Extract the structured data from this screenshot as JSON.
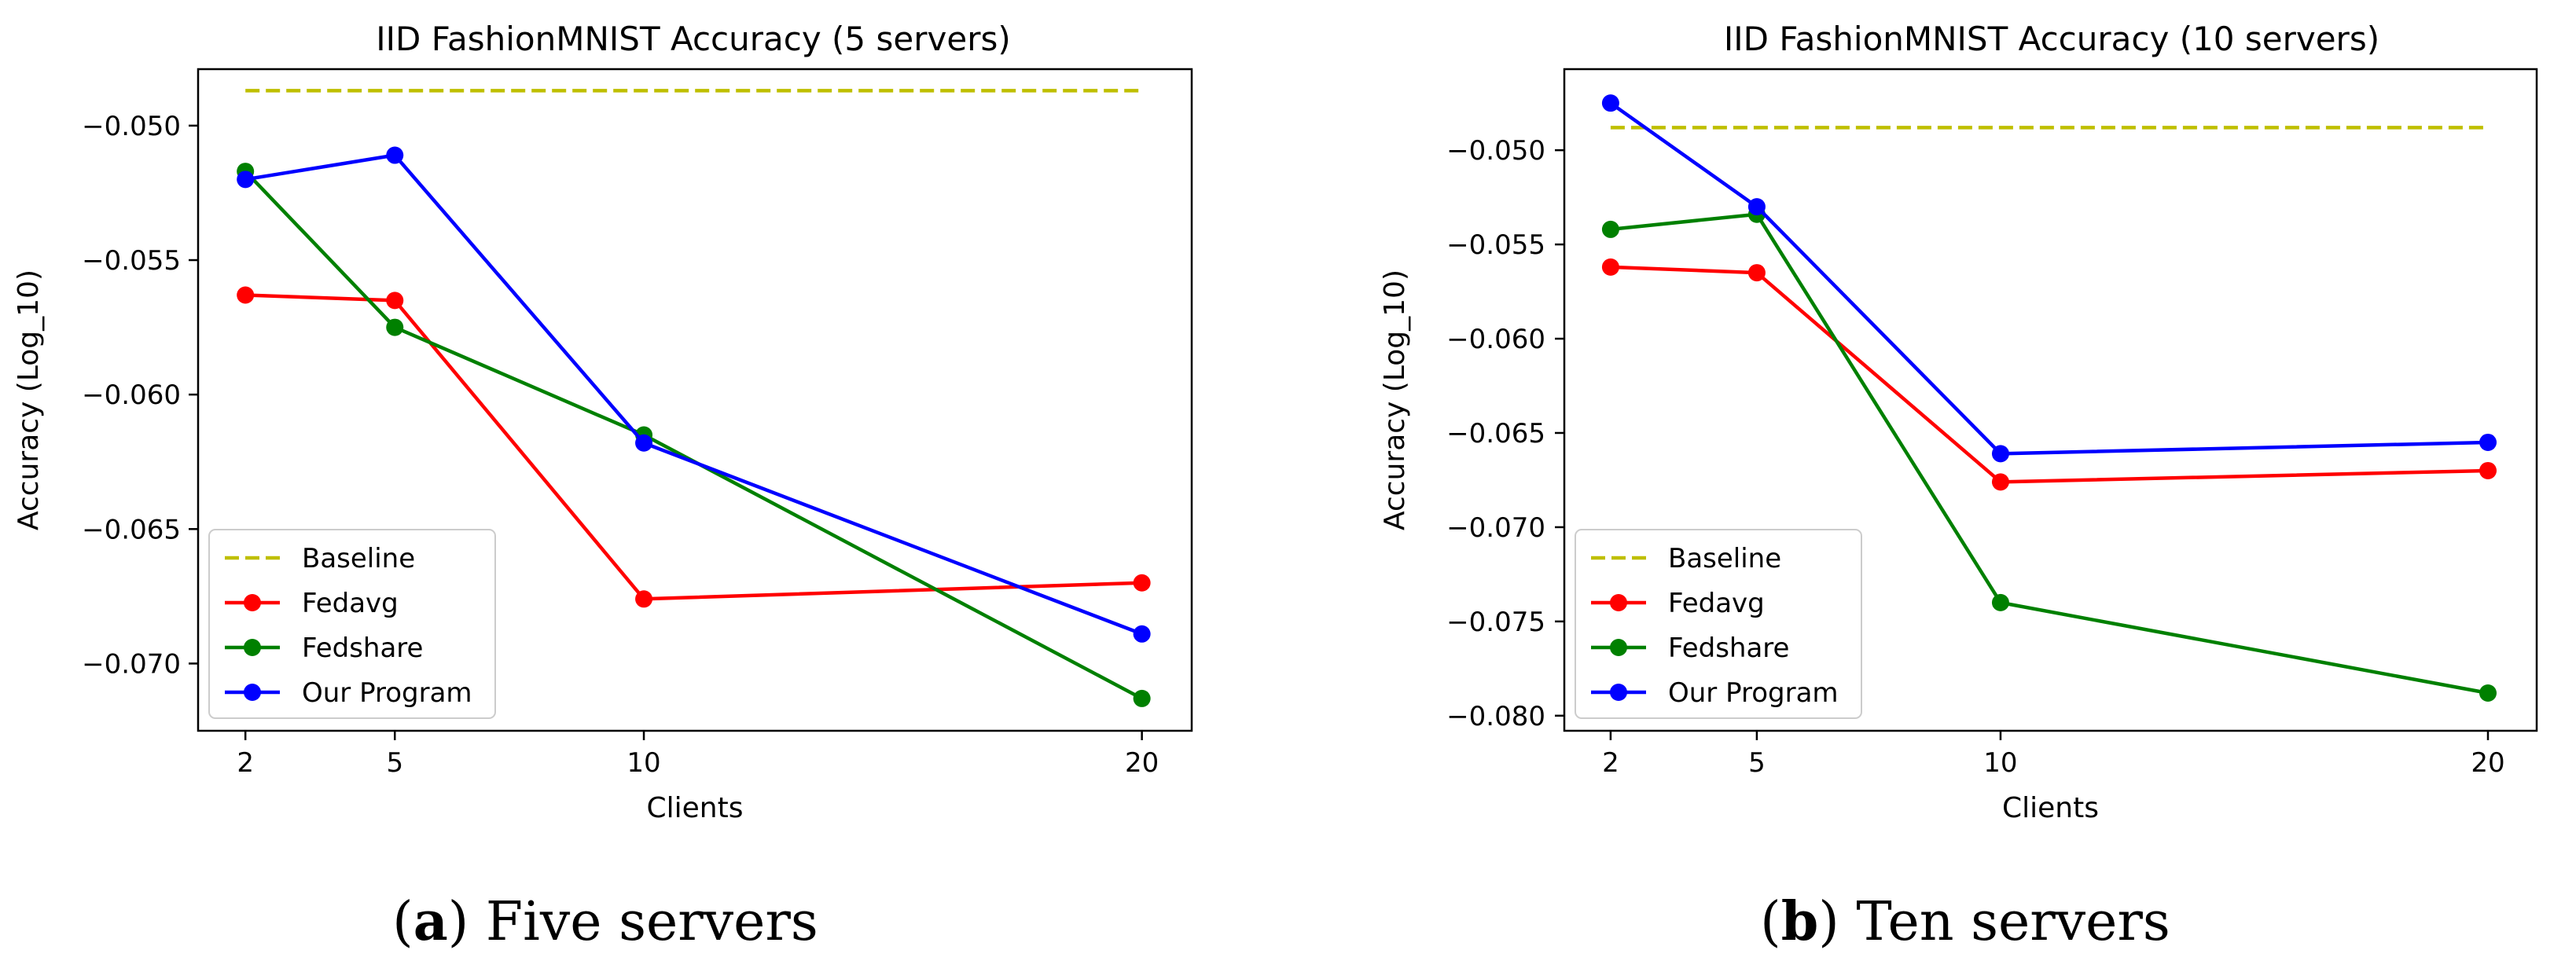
{
  "chart_data": [
    {
      "type": "line",
      "title": "IID FashionMNIST Accuracy (5 servers)",
      "xlabel": "Clients",
      "ylabel": "Accuracy (Log_10)",
      "x": [
        2,
        5,
        10,
        20
      ],
      "xticks": [
        "2",
        "5",
        "10",
        "20"
      ],
      "xlim": [
        1.05,
        21.0
      ],
      "ylim": [
        -0.0725,
        -0.0479
      ],
      "yticks": [
        -0.07,
        -0.065,
        -0.06,
        -0.055,
        -0.05
      ],
      "ytick_labels": [
        "−0.070",
        "−0.065",
        "−0.060",
        "−0.055",
        "−0.050"
      ],
      "legend_position": "lower-left",
      "series": [
        {
          "name": "Baseline",
          "color": "#bfbf00",
          "style": "dashed",
          "marker": "none",
          "x": [
            2,
            20
          ],
          "values": [
            -0.0487,
            -0.0487
          ]
        },
        {
          "name": "Fedavg",
          "color": "#ff0000",
          "style": "solid",
          "marker": "circle",
          "x": [
            2,
            5,
            10,
            20
          ],
          "values": [
            -0.0563,
            -0.0565,
            -0.0676,
            -0.067
          ]
        },
        {
          "name": "Fedshare",
          "color": "#008000",
          "style": "solid",
          "marker": "circle",
          "x": [
            2,
            5,
            10,
            20
          ],
          "values": [
            -0.0517,
            -0.0575,
            -0.0615,
            -0.0713
          ]
        },
        {
          "name": "Our Program",
          "color": "#0000ff",
          "style": "solid",
          "marker": "circle",
          "x": [
            2,
            5,
            10,
            20
          ],
          "values": [
            -0.052,
            -0.0511,
            -0.0618,
            -0.0689
          ]
        }
      ]
    },
    {
      "type": "line",
      "title": "IID FashionMNIST Accuracy (10 servers)",
      "xlabel": "Clients",
      "ylabel": "Accuracy (Log_10)",
      "x": [
        2,
        5,
        10,
        20
      ],
      "xticks": [
        "2",
        "5",
        "10",
        "20"
      ],
      "xlim": [
        1.05,
        21.0
      ],
      "ylim": [
        -0.0808,
        -0.0457
      ],
      "yticks": [
        -0.08,
        -0.075,
        -0.07,
        -0.065,
        -0.06,
        -0.055,
        -0.05
      ],
      "ytick_labels": [
        "−0.080",
        "−0.075",
        "−0.070",
        "−0.065",
        "−0.060",
        "−0.055",
        "−0.050"
      ],
      "legend_position": "lower-left",
      "series": [
        {
          "name": "Baseline",
          "color": "#bfbf00",
          "style": "dashed",
          "marker": "none",
          "x": [
            2,
            20
          ],
          "values": [
            -0.0488,
            -0.0488
          ]
        },
        {
          "name": "Fedavg",
          "color": "#ff0000",
          "style": "solid",
          "marker": "circle",
          "x": [
            2,
            5,
            10,
            20
          ],
          "values": [
            -0.0562,
            -0.0565,
            -0.0676,
            -0.067
          ]
        },
        {
          "name": "Fedshare",
          "color": "#008000",
          "style": "solid",
          "marker": "circle",
          "x": [
            2,
            5,
            10,
            20
          ],
          "values": [
            -0.0542,
            -0.0534,
            -0.074,
            -0.0788
          ]
        },
        {
          "name": "Our Program",
          "color": "#0000ff",
          "style": "solid",
          "marker": "circle",
          "x": [
            2,
            5,
            10,
            20
          ],
          "values": [
            -0.0475,
            -0.053,
            -0.0661,
            -0.0655
          ]
        }
      ]
    }
  ],
  "captions": [
    {
      "label": "a",
      "text": "Five servers"
    },
    {
      "label": "b",
      "text": "Ten servers"
    }
  ]
}
